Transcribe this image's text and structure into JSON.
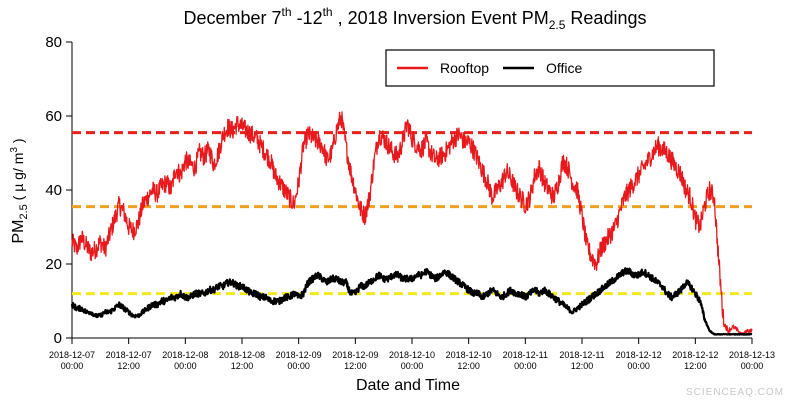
{
  "chart_data": {
    "type": "line",
    "title": {
      "prefix": "December 7",
      "sup1": "th",
      "mid": " -12",
      "sup2": "th",
      "rest": " , 2018 Inversion Event PM",
      "sub": "2.5",
      "suffix": " Readings"
    },
    "xlabel": "Date and Time",
    "ylabel": {
      "prefix": "PM",
      "sub": "2.5",
      "mid": " ( µ g/ m",
      "sup": "3",
      "suffix": " )"
    },
    "xlim": [
      0,
      144
    ],
    "ylim": [
      0,
      80
    ],
    "y_ticks": [
      0,
      20,
      40,
      60,
      80
    ],
    "x_ticks": [
      {
        "x": 0,
        "date": "2018-12-07",
        "time": "00:00"
      },
      {
        "x": 12,
        "date": "2018-12-07",
        "time": "12:00"
      },
      {
        "x": 24,
        "date": "2018-12-08",
        "time": "00:00"
      },
      {
        "x": 36,
        "date": "2018-12-08",
        "time": "12:00"
      },
      {
        "x": 48,
        "date": "2018-12-09",
        "time": "00:00"
      },
      {
        "x": 60,
        "date": "2018-12-09",
        "time": "12:00"
      },
      {
        "x": 72,
        "date": "2018-12-10",
        "time": "00:00"
      },
      {
        "x": 84,
        "date": "2018-12-10",
        "time": "12:00"
      },
      {
        "x": 96,
        "date": "2018-12-11",
        "time": "00:00"
      },
      {
        "x": 108,
        "date": "2018-12-11",
        "time": "12:00"
      },
      {
        "x": 120,
        "date": "2018-12-12",
        "time": "00:00"
      },
      {
        "x": 132,
        "date": "2018-12-12",
        "time": "12:00"
      },
      {
        "x": 144,
        "date": "2018-12-13",
        "time": "00:00"
      }
    ],
    "legend": {
      "placement": "top-right"
    },
    "grid": false,
    "reference_lines": [
      {
        "y": 55.5,
        "color": "#e8201c",
        "style": "dashed"
      },
      {
        "y": 35.5,
        "color": "#f0a020",
        "style": "dashed"
      },
      {
        "y": 12.0,
        "color": "#f2e81c",
        "style": "dashed"
      }
    ],
    "series": [
      {
        "name": "Rooftop",
        "color": "#e8191c",
        "x": [
          0,
          1,
          2,
          3,
          4,
          5,
          6,
          7,
          8,
          9,
          10,
          11,
          12,
          13,
          14,
          15,
          16,
          17,
          18,
          19,
          20,
          21,
          22,
          23,
          24,
          25,
          26,
          27,
          28,
          29,
          30,
          31,
          32,
          33,
          34,
          35,
          36,
          37,
          38,
          39,
          40,
          41,
          42,
          43,
          44,
          45,
          46,
          47,
          48,
          49,
          50,
          51,
          52,
          53,
          54,
          55,
          56,
          57,
          58,
          59,
          60,
          61,
          62,
          63,
          64,
          65,
          66,
          67,
          68,
          69,
          70,
          71,
          72,
          73,
          74,
          75,
          76,
          77,
          78,
          79,
          80,
          81,
          82,
          83,
          84,
          85,
          86,
          87,
          88,
          89,
          90,
          91,
          92,
          93,
          94,
          95,
          96,
          97,
          98,
          99,
          100,
          101,
          102,
          103,
          104,
          105,
          106,
          107,
          108,
          109,
          110,
          111,
          112,
          113,
          114,
          115,
          116,
          117,
          118,
          119,
          120,
          121,
          122,
          123,
          124,
          125,
          126,
          127,
          128,
          129,
          130,
          131,
          132,
          133,
          134,
          135,
          136,
          137,
          138,
          139,
          140,
          141,
          142,
          143,
          144
        ],
        "values": [
          26,
          24,
          27,
          25,
          23,
          24,
          26,
          24,
          28,
          32,
          36,
          34,
          30,
          29,
          31,
          36,
          38,
          40,
          39,
          41,
          42,
          40,
          46,
          44,
          48,
          47,
          46,
          50,
          49,
          51,
          47,
          50,
          55,
          57,
          56,
          58,
          57,
          56,
          55,
          54,
          52,
          50,
          48,
          44,
          42,
          40,
          38,
          36,
          42,
          52,
          55,
          54,
          53,
          52,
          48,
          50,
          56,
          60,
          52,
          45,
          40,
          35,
          33,
          38,
          48,
          55,
          54,
          52,
          50,
          49,
          53,
          58,
          54,
          52,
          51,
          53,
          50,
          48,
          49,
          50,
          52,
          54,
          55,
          53,
          53,
          51,
          48,
          45,
          42,
          38,
          40,
          42,
          45,
          43,
          40,
          38,
          36,
          38,
          44,
          46,
          42,
          40,
          38,
          42,
          48,
          46,
          42,
          40,
          33,
          25,
          22,
          20,
          24,
          26,
          28,
          30,
          34,
          38,
          40,
          42,
          44,
          46,
          48,
          50,
          52,
          51,
          50,
          48,
          46,
          44,
          40,
          38,
          32,
          30,
          36,
          40,
          38,
          20,
          4,
          2,
          3,
          2,
          1,
          2,
          2
        ]
      },
      {
        "name": "Office",
        "color": "#000000",
        "x": [
          0,
          1,
          2,
          3,
          4,
          5,
          6,
          7,
          8,
          9,
          10,
          11,
          12,
          13,
          14,
          15,
          16,
          17,
          18,
          19,
          20,
          21,
          22,
          23,
          24,
          25,
          26,
          27,
          28,
          29,
          30,
          31,
          32,
          33,
          34,
          35,
          36,
          37,
          38,
          39,
          40,
          41,
          42,
          43,
          44,
          45,
          46,
          47,
          48,
          49,
          50,
          51,
          52,
          53,
          54,
          55,
          56,
          57,
          58,
          59,
          60,
          61,
          62,
          63,
          64,
          65,
          66,
          67,
          68,
          69,
          70,
          71,
          72,
          73,
          74,
          75,
          76,
          77,
          78,
          79,
          80,
          81,
          82,
          83,
          84,
          85,
          86,
          87,
          88,
          89,
          90,
          91,
          92,
          93,
          94,
          95,
          96,
          97,
          98,
          99,
          100,
          101,
          102,
          103,
          104,
          105,
          106,
          107,
          108,
          109,
          110,
          111,
          112,
          113,
          114,
          115,
          116,
          117,
          118,
          119,
          120,
          121,
          122,
          123,
          124,
          125,
          126,
          127,
          128,
          129,
          130,
          131,
          132,
          133,
          134,
          135,
          136,
          137,
          138,
          139,
          140,
          141,
          142,
          143,
          144
        ],
        "values": [
          9,
          8,
          8,
          7,
          7,
          6,
          6,
          7,
          7,
          8,
          9,
          8,
          7,
          6,
          6,
          7,
          8,
          9,
          9,
          10,
          10,
          11,
          11,
          12,
          11,
          11,
          12,
          12,
          12,
          13,
          13,
          14,
          14,
          15,
          15,
          14,
          14,
          13,
          12,
          12,
          11,
          11,
          10,
          10,
          10,
          11,
          11,
          12,
          11,
          12,
          15,
          16,
          17,
          16,
          15,
          16,
          16,
          15,
          15,
          12,
          12,
          14,
          14,
          15,
          16,
          17,
          16,
          16,
          17,
          17,
          16,
          16,
          16,
          17,
          17,
          18,
          17,
          16,
          17,
          18,
          17,
          16,
          15,
          14,
          13,
          12,
          12,
          11,
          12,
          13,
          12,
          11,
          12,
          13,
          12,
          12,
          11,
          12,
          13,
          12,
          13,
          12,
          11,
          10,
          9,
          8,
          7,
          8,
          9,
          10,
          11,
          12,
          13,
          14,
          15,
          16,
          17,
          18,
          18,
          17,
          17,
          18,
          17,
          16,
          15,
          14,
          12,
          11,
          12,
          13,
          15,
          14,
          12,
          10,
          5,
          2,
          1,
          1,
          1,
          1,
          1,
          1,
          1,
          1,
          1
        ]
      }
    ]
  },
  "watermark": "SCIENCEAQ.COM"
}
